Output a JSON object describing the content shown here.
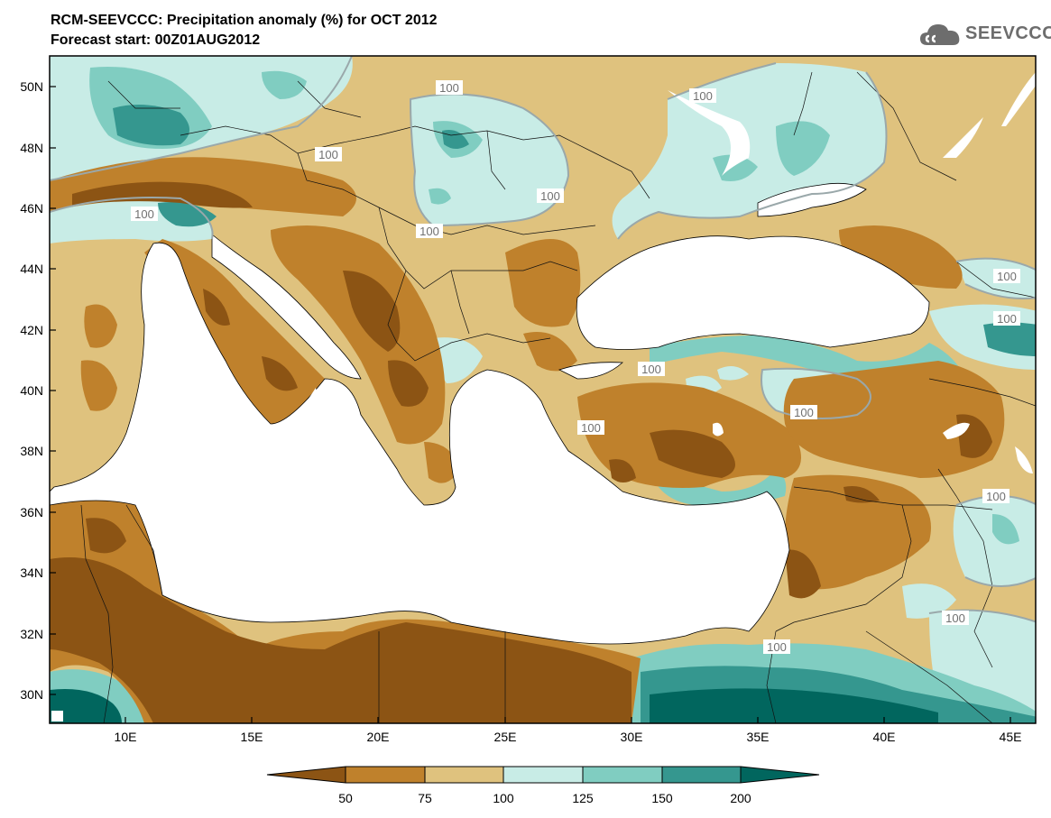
{
  "header": {
    "title": "RCM-SEEVCCC: Precipitation anomaly (%) for OCT 2012",
    "subtitle": "Forecast start: 00Z01AUG2012",
    "logo_text": "SEEVCCC"
  },
  "map": {
    "lon_range": [
      7,
      46
    ],
    "lat_range": [
      29,
      51
    ],
    "lat_ticks": [
      "50N",
      "48N",
      "46N",
      "44N",
      "42N",
      "40N",
      "38N",
      "36N",
      "34N",
      "32N",
      "30N"
    ],
    "lon_ticks": [
      "10E",
      "15E",
      "20E",
      "25E",
      "30E",
      "35E",
      "40E",
      "45E"
    ],
    "contour_label": "100",
    "ocean_color": "#ffffff"
  },
  "legend": {
    "levels": [
      "50",
      "75",
      "100",
      "125",
      "150",
      "200"
    ],
    "colors": [
      "#8c5414",
      "#bf812c",
      "#dfc27e",
      "#c8ece6",
      "#80cdc1",
      "#35978f",
      "#01665e"
    ]
  }
}
